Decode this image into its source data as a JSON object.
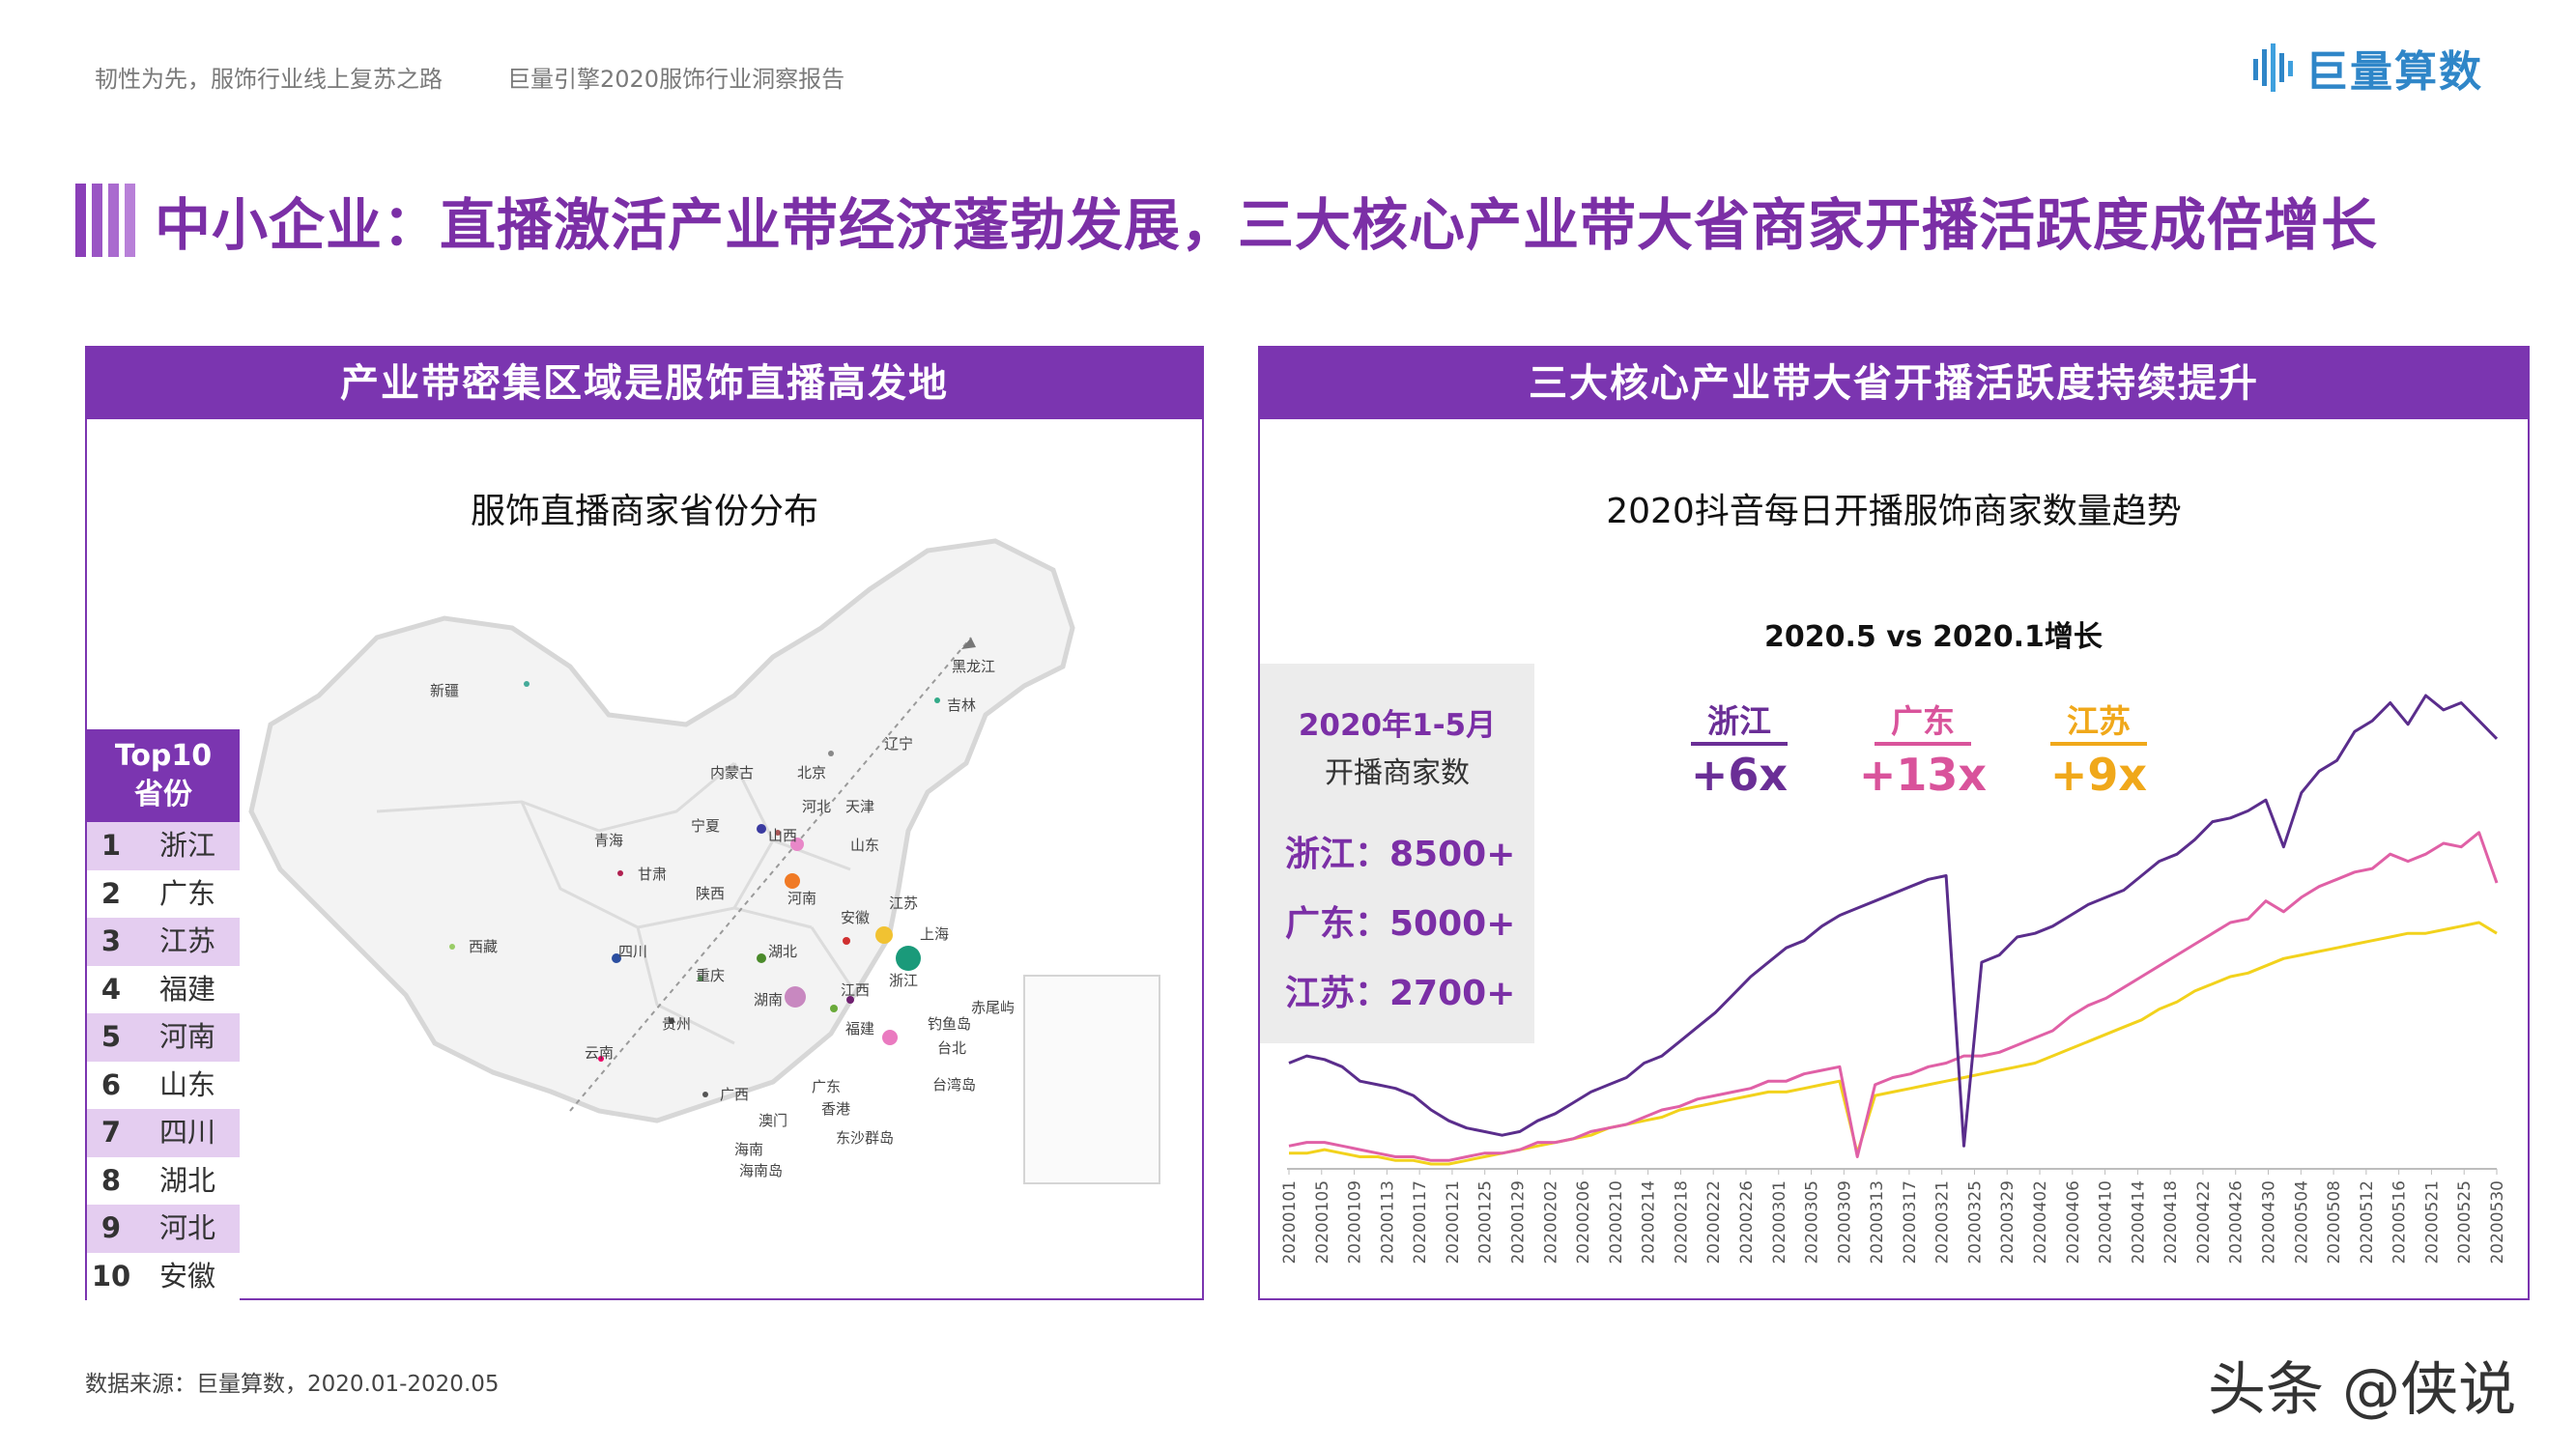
{
  "header": {
    "left_text_1": "韧性为先，服饰行业线上复苏之路",
    "left_text_2": "巨量引擎2020服饰行业洞察报告",
    "logo_text": "巨量算数",
    "logo_color": "#2f86c8"
  },
  "title": "中小企业：直播激活产业带经济蓬勃发展，三大核心产业带大省商家开播活跃度成倍增长",
  "left_panel": {
    "heading": "产业带密集区域是服饰直播高发地",
    "map_title": "服饰直播商家省份分布",
    "top10_title_line1": "Top10",
    "top10_title_line2": "省份",
    "top10": [
      {
        "rank": "1",
        "name": "浙江"
      },
      {
        "rank": "2",
        "name": "广东"
      },
      {
        "rank": "3",
        "name": "江苏"
      },
      {
        "rank": "4",
        "name": "福建"
      },
      {
        "rank": "5",
        "name": "河南"
      },
      {
        "rank": "6",
        "name": "山东"
      },
      {
        "rank": "7",
        "name": "四川"
      },
      {
        "rank": "8",
        "name": "湖北"
      },
      {
        "rank": "9",
        "name": "河北"
      },
      {
        "rank": "10",
        "name": "安徽"
      }
    ],
    "map_labels": [
      "新疆",
      "西藏",
      "青海",
      "甘肃",
      "宁夏",
      "陕西",
      "内蒙古",
      "北京",
      "天津",
      "河北",
      "山西",
      "山东",
      "河南",
      "江苏",
      "安徽",
      "上海",
      "浙江",
      "湖北",
      "四川",
      "重庆",
      "湖南",
      "江西",
      "福建",
      "贵州",
      "云南",
      "广西",
      "广东",
      "香港",
      "澳门",
      "台湾岛",
      "海南",
      "海南岛",
      "东沙群岛",
      "钓鱼岛",
      "赤尾屿",
      "台北",
      "黑龙江",
      "吉林",
      "辽宁"
    ]
  },
  "right_panel": {
    "heading": "三大核心产业带大省开播活跃度持续提升",
    "chart_title": "2020抖音每日开播服饰商家数量趋势",
    "compare_title": "2020.5 vs 2020.1增长",
    "stats": {
      "period": "2020年1-5月",
      "label": "开播商家数",
      "lines": [
        "浙江：8500+",
        "广东：5000+",
        "江苏：2700+"
      ]
    },
    "growth": [
      {
        "name": "浙江",
        "value": "+6x",
        "color": "#6a2e96"
      },
      {
        "name": "广东",
        "value": "+13x",
        "color": "#d9539b"
      },
      {
        "name": "江苏",
        "value": "+9x",
        "color": "#f0a81a"
      }
    ]
  },
  "chart_data": {
    "type": "line",
    "title": "2020抖音每日开播服饰商家数量趋势",
    "x_ticks": [
      "20200101",
      "20200105",
      "20200109",
      "20200113",
      "20200117",
      "20200121",
      "20200125",
      "20200129",
      "20200202",
      "20200206",
      "20200210",
      "20200214",
      "20200218",
      "20200222",
      "20200226",
      "20200301",
      "20200305",
      "20200309",
      "20200313",
      "20200317",
      "20200321",
      "20200325",
      "20200329",
      "20200402",
      "20200406",
      "20200410",
      "20200414",
      "20200418",
      "20200422",
      "20200426",
      "20200430",
      "20200504",
      "20200508",
      "20200512",
      "20200516",
      "20200521",
      "20200525",
      "20200530"
    ],
    "series": [
      {
        "name": "浙江",
        "color": "#5a2d8c",
        "values": [
          28,
          30,
          29,
          27,
          23,
          22,
          21,
          19,
          15,
          12,
          10,
          9,
          8,
          9,
          12,
          14,
          17,
          20,
          22,
          24,
          28,
          30,
          34,
          38,
          42,
          47,
          52,
          56,
          60,
          62,
          66,
          69,
          71,
          73,
          75,
          77,
          79,
          80,
          5,
          56,
          58,
          63,
          64,
          66,
          69,
          72,
          74,
          76,
          80,
          84,
          86,
          90,
          95,
          96,
          98,
          101,
          88,
          103,
          109,
          112,
          120,
          123,
          128,
          122,
          130,
          126,
          128,
          123,
          118
        ]
      },
      {
        "name": "广东",
        "color": "#e060a6",
        "values": [
          5,
          6,
          6,
          5,
          4,
          3,
          2,
          2,
          1,
          1,
          2,
          3,
          3,
          4,
          6,
          6,
          7,
          9,
          10,
          11,
          13,
          15,
          16,
          18,
          19,
          20,
          21,
          23,
          23,
          25,
          26,
          27,
          2,
          22,
          24,
          25,
          27,
          28,
          30,
          30,
          31,
          33,
          35,
          37,
          41,
          44,
          46,
          49,
          52,
          55,
          58,
          61,
          64,
          67,
          68,
          73,
          70,
          74,
          77,
          79,
          81,
          82,
          86,
          84,
          86,
          89,
          88,
          92,
          78
        ]
      },
      {
        "name": "江苏",
        "color": "#f2d21c",
        "values": [
          3,
          3,
          4,
          3,
          2,
          2,
          1,
          1,
          0,
          0,
          1,
          2,
          3,
          4,
          5,
          6,
          7,
          8,
          10,
          11,
          12,
          13,
          15,
          16,
          17,
          18,
          19,
          20,
          20,
          21,
          22,
          23,
          3,
          19,
          20,
          21,
          22,
          23,
          24,
          25,
          26,
          27,
          28,
          30,
          32,
          34,
          36,
          38,
          40,
          43,
          45,
          48,
          50,
          52,
          53,
          55,
          57,
          58,
          59,
          60,
          61,
          62,
          63,
          64,
          64,
          65,
          66,
          67,
          64
        ]
      }
    ],
    "grid": false,
    "legend": "none"
  },
  "footer": {
    "source": "数据来源：巨量算数，2020.01-2020.05",
    "watermark": "头条 @侠说"
  }
}
